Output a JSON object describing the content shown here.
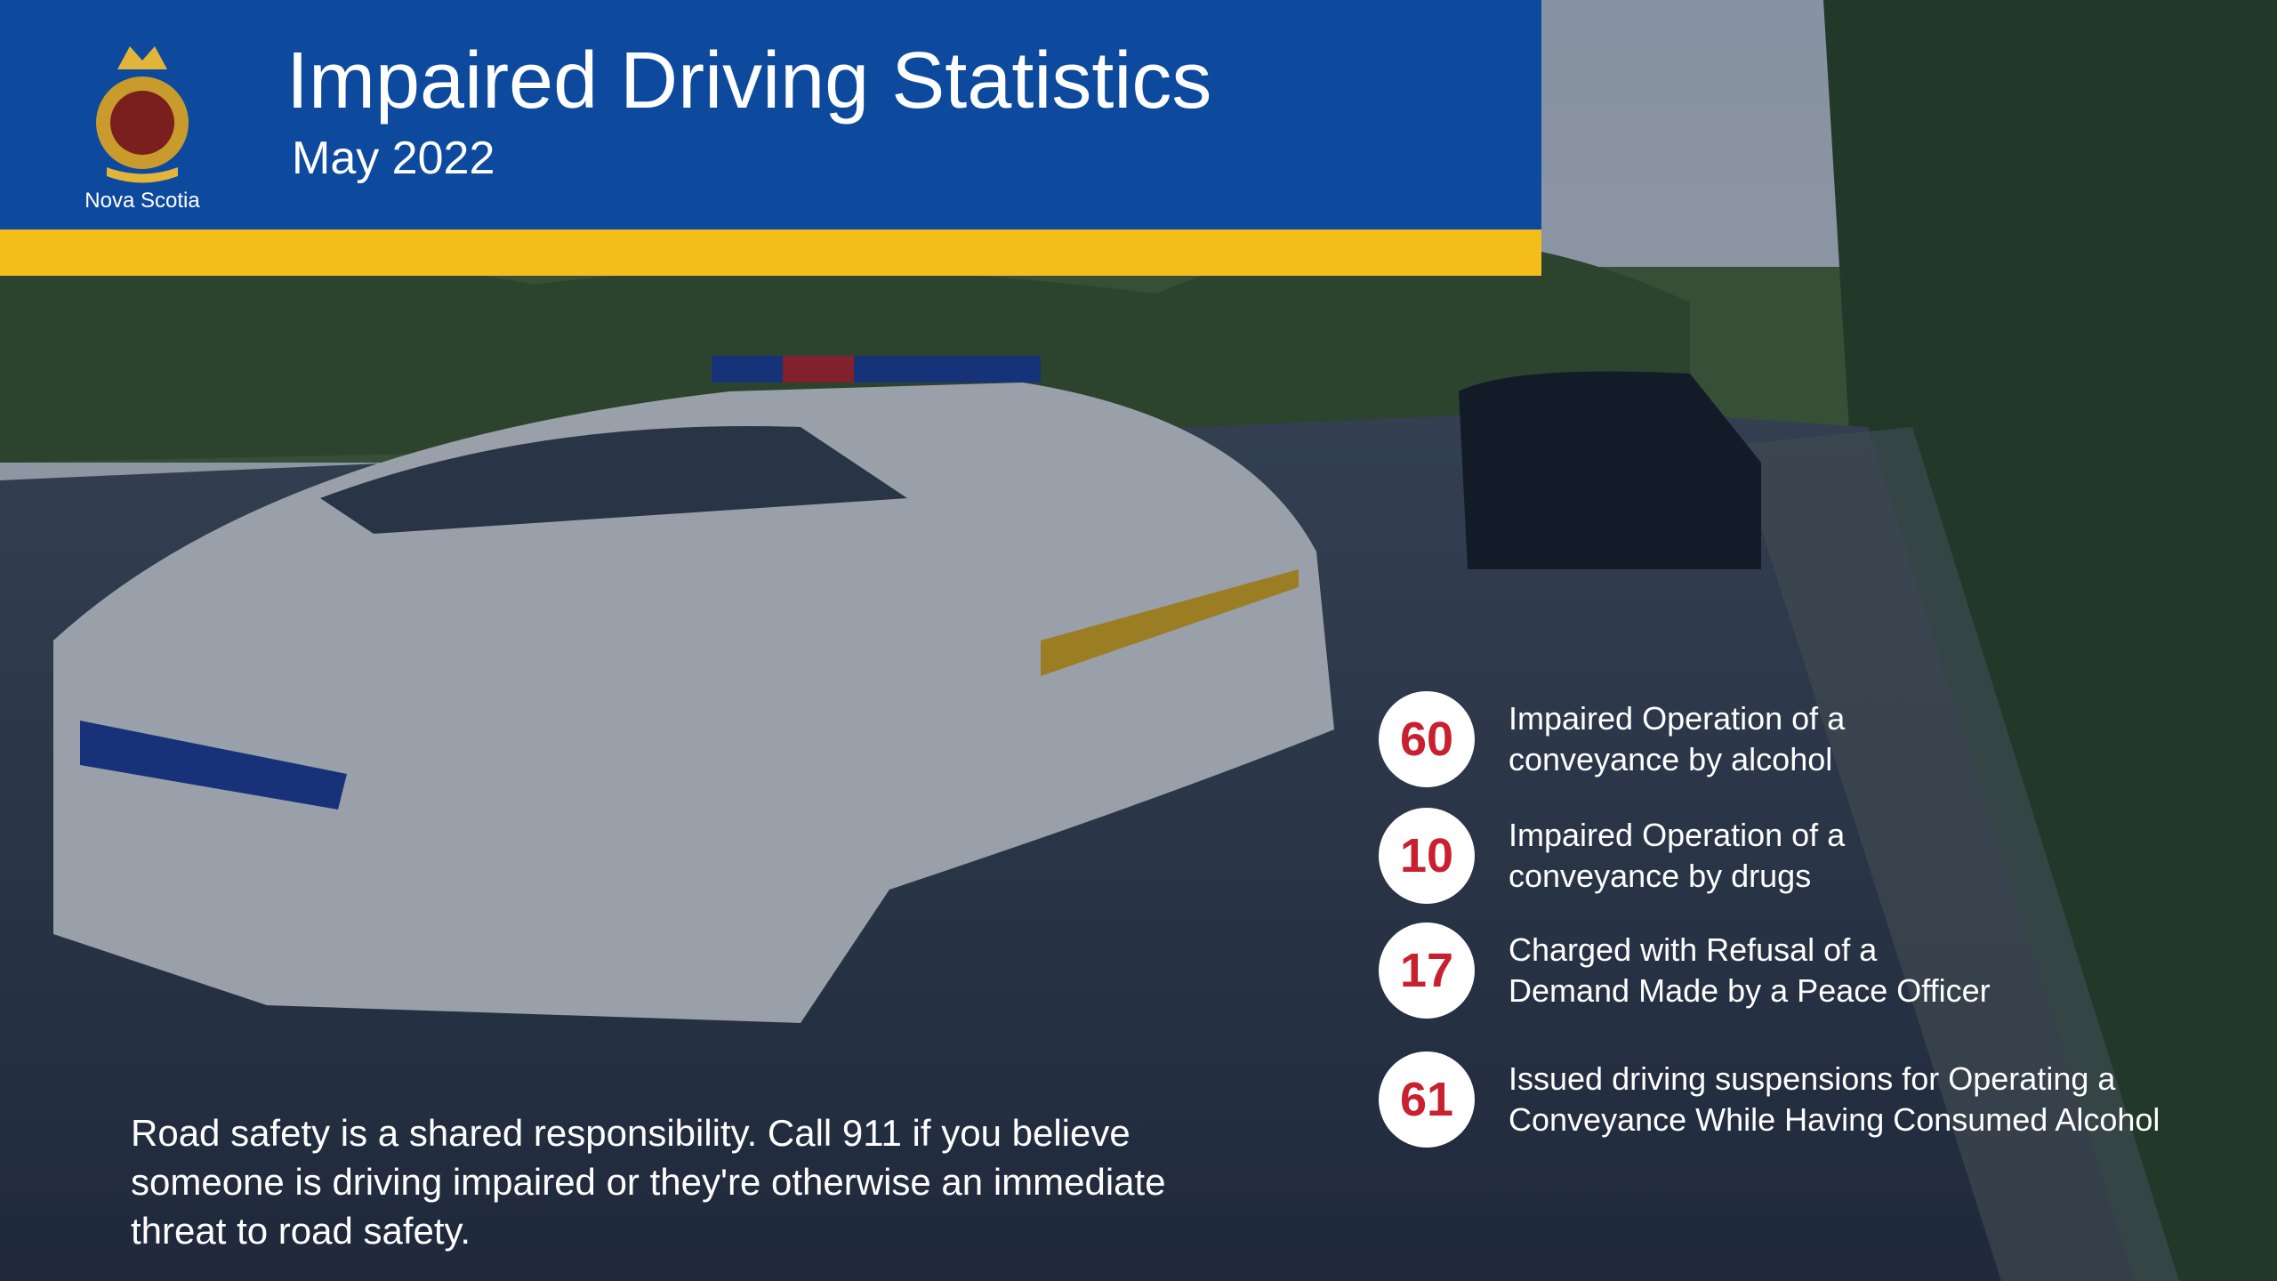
{
  "header": {
    "title": "Impaired Driving Statistics",
    "subtitle": "May 2022",
    "logo_caption": "Nova Scotia"
  },
  "stats": [
    {
      "value": 60,
      "label_lines": [
        "Impaired Operation of a",
        "conveyance by alcohol"
      ]
    },
    {
      "value": 10,
      "label_lines": [
        "Impaired Operation of a",
        "conveyance by drugs"
      ]
    },
    {
      "value": 17,
      "label_lines": [
        "Charged with Refusal of a",
        "Demand Made by a Peace Officer"
      ]
    },
    {
      "value": 61,
      "label_lines": [
        "Issued driving suspensions for Operating a",
        "Conveyance While Having Consumed Alcohol"
      ]
    }
  ],
  "footer": {
    "lines": [
      "Road safety is a shared responsibility. Call 911 if you believe",
      "someone is driving impaired or they're otherwise an immediate",
      "threat to road safety."
    ]
  }
}
